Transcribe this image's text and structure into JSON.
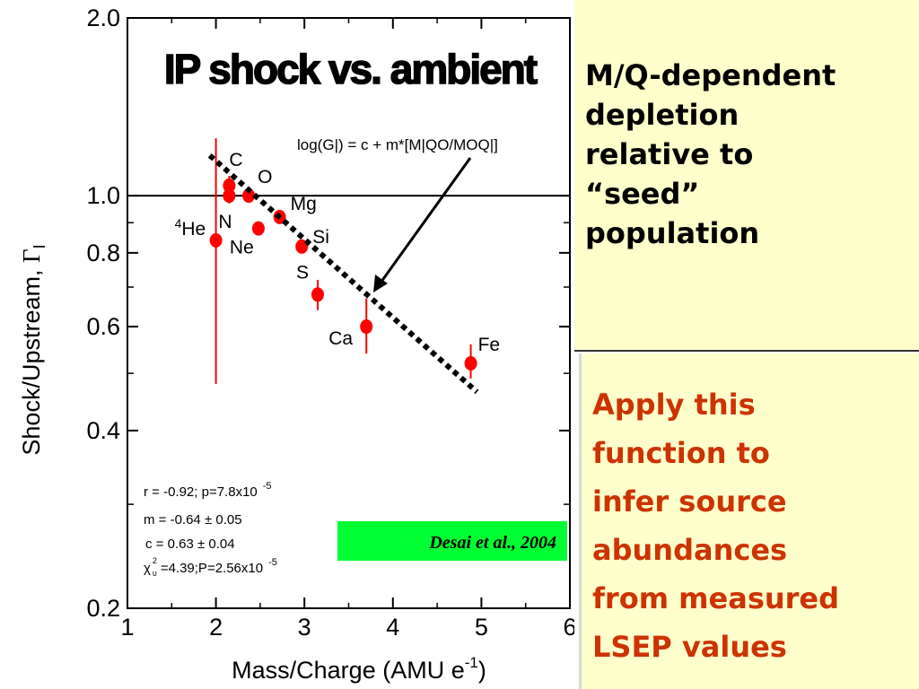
{
  "chart_data": {
    "type": "scatter",
    "title": "IP shock vs. ambient",
    "xlabel_main": "Mass/Charge (AMU e",
    "xlabel_sup": "-1",
    "xlabel_end": ")",
    "ylabel_main": "Shock/Upstream, ",
    "ylabel_sym": "Γ",
    "ylabel_sub": "I",
    "xlim": [
      1,
      6
    ],
    "ylim": [
      0.2,
      2.0
    ],
    "y_scale": "log",
    "x_ticks": [
      "1",
      "2",
      "3",
      "4",
      "5",
      "6"
    ],
    "y_ticks": [
      "0.2",
      "0.4",
      "0.6",
      "0.8",
      "1.0",
      "2.0"
    ],
    "reference_line_y": 1.0,
    "points": [
      {
        "label": "4He",
        "x": 2.0,
        "y": 0.84,
        "ylo": 0.48,
        "yhi": 1.25
      },
      {
        "label": "C",
        "x": 2.15,
        "y": 1.04,
        "ylo": 1.0,
        "yhi": 1.08
      },
      {
        "label": "N",
        "x": 2.15,
        "y": 1.0,
        "ylo": 0.97,
        "yhi": 1.03
      },
      {
        "label": "O",
        "x": 2.37,
        "y": 1.0,
        "ylo": 0.98,
        "yhi": 1.02
      },
      {
        "label": "Ne",
        "x": 2.48,
        "y": 0.88,
        "ylo": 0.86,
        "yhi": 0.9
      },
      {
        "label": "Mg",
        "x": 2.72,
        "y": 0.92,
        "ylo": 0.9,
        "yhi": 0.94
      },
      {
        "label": "Si",
        "x": 2.97,
        "y": 0.82,
        "ylo": 0.8,
        "yhi": 0.84
      },
      {
        "label": "S",
        "x": 3.15,
        "y": 0.68,
        "ylo": 0.64,
        "yhi": 0.72
      },
      {
        "label": "Ca",
        "x": 3.7,
        "y": 0.6,
        "ylo": 0.54,
        "yhi": 0.67
      },
      {
        "label": "Fe",
        "x": 4.88,
        "y": 0.52,
        "ylo": 0.49,
        "yhi": 0.56
      }
    ],
    "fit_line": {
      "x": [
        1.93,
        4.95
      ],
      "y": [
        1.17,
        0.465
      ]
    },
    "equation": "log(G|) = c + m*[M|QO/MOQ|]",
    "stats": {
      "r_line": "r = -0.92; p=7.8x10",
      "r_exp": "-5",
      "m_line": "m = -0.64  ± 0.05",
      "c_line": "c = 0.63  ± 0.04",
      "chi_sym": "χ",
      "chi_sup": "2",
      "chi_sub": "υ",
      "chi_line": "=4.39;P=2.56x10",
      "chi_exp": "-5"
    },
    "citation": "Desai et al., 2004",
    "colors": {
      "points": "#ff0000",
      "citation_bg": "#00ff33",
      "fit": "#000000"
    }
  },
  "panels": {
    "top_text": "M/Q-dependent\ndepletion\nrelative to\n“seed”\npopulation",
    "bottom_text": "Apply this\nfunction to\ninfer source\nabundances\nfrom measured\nLSEP values"
  },
  "colors": {
    "panel_bg": "#ffffcc",
    "bottom_text": "#cc3300"
  }
}
